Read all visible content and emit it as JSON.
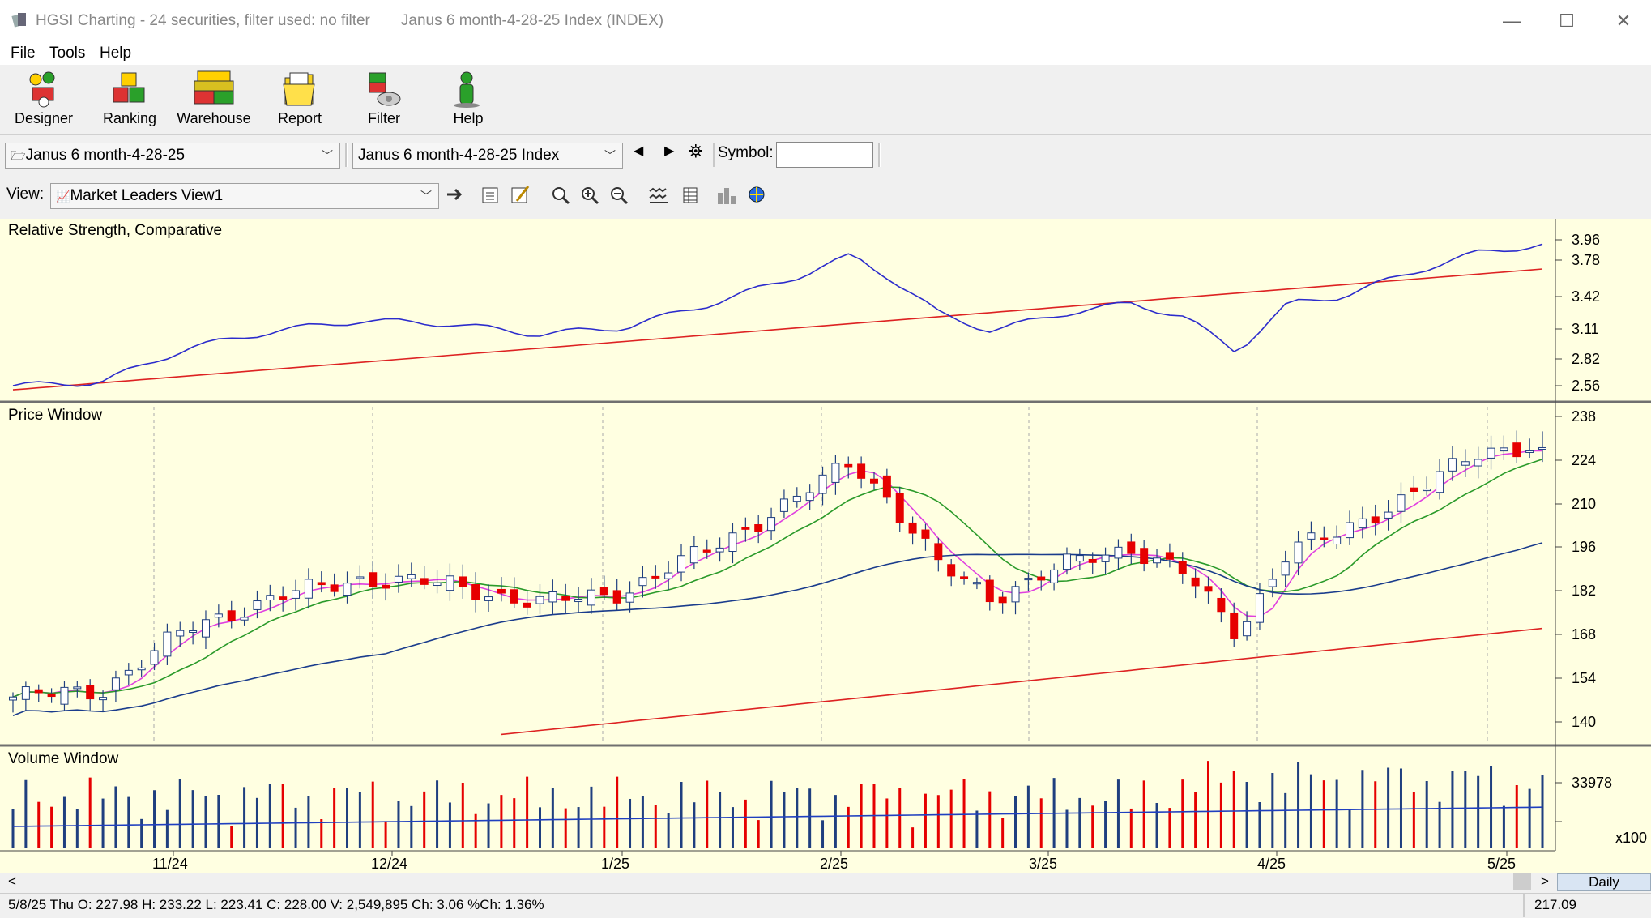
{
  "window": {
    "title": "HGSI Charting - 24 securities, filter used: no filter",
    "subtitle": "Janus 6 month-4-28-25 Index (INDEX)",
    "minimize": "—",
    "maximize": "☐",
    "close": "✕"
  },
  "menu": [
    "File",
    "Tools",
    "Help"
  ],
  "toolbar": [
    {
      "label": "Designer",
      "icon": "designer-icon"
    },
    {
      "label": "Ranking",
      "icon": "ranking-icon"
    },
    {
      "label": "Warehouse",
      "icon": "warehouse-icon"
    },
    {
      "label": "Report",
      "icon": "report-icon"
    },
    {
      "label": "Filter",
      "icon": "filter-icon"
    },
    {
      "label": "Help",
      "icon": "help-icon"
    }
  ],
  "selectors": {
    "list_combo": "Janus 6 month-4-28-25",
    "security_combo": "Janus 6 month-4-28-25 Index",
    "symbol_label": "Symbol:",
    "symbol_value": "",
    "view_label": "View:",
    "view_combo": "Market Leaders View1"
  },
  "panes": {
    "rs": {
      "label": "Relative Strength, Comparative",
      "ticks": [
        "3.96",
        "3.78",
        "3.42",
        "3.11",
        "2.82",
        "2.56"
      ]
    },
    "price": {
      "label": "Price Window",
      "ticks": [
        "238",
        "224",
        "210",
        "196",
        "182",
        "168",
        "154",
        "140"
      ]
    },
    "volume": {
      "label": "Volume Window",
      "ticks": [
        "33978"
      ],
      "multiplier": "x100"
    }
  },
  "x_axis": [
    "11/24",
    "12/24",
    "1/25",
    "2/25",
    "3/25",
    "4/25",
    "5/25"
  ],
  "scroll": {
    "left": "<",
    "right": ">",
    "period": "Daily"
  },
  "status": {
    "ohlc": "5/8/25 Thu O: 227.98 H: 233.22 L: 223.41 C: 228.00 V: 2,549,895 Ch: 3.06 %Ch: 1.36%",
    "cursor_value": "217.09"
  },
  "colors": {
    "chart_bg": "#ffffe1",
    "up_candle": "#1f3f7f",
    "down_candle": "#e60000",
    "rs_line": "#2c2ccc",
    "rs_ma": "#dd2222",
    "ma_fast": "#e040e0",
    "ma_mid": "#2a9a2a",
    "ma_slow": "#1a3c8c",
    "ma_long": "#dd2222"
  },
  "chart_data": {
    "type": "candlestick",
    "start_close": 148,
    "end_close": 228.0,
    "last": {
      "date": "5/8/25",
      "open": 227.98,
      "high": 233.22,
      "low": 223.41,
      "close": 228.0,
      "volume": 2549895
    },
    "price_range": [
      136,
      240
    ],
    "rs_range": [
      2.5,
      4.05
    ],
    "volume_multiplier": 100
  }
}
